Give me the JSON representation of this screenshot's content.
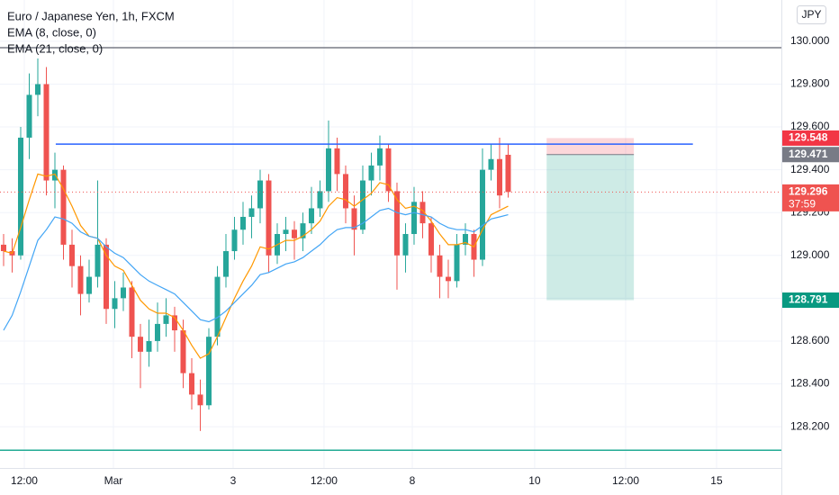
{
  "chart_data": {
    "type": "candlestick",
    "title": "Euro / Japanese Yen, 1h, FXCM",
    "indicators": [
      {
        "name": "EMA (8, close, 0)",
        "color": "#ff9800",
        "values": [
          129.02,
          129.01,
          129.13,
          129.26,
          129.38,
          129.37,
          129.38,
          129.31,
          129.23,
          129.14,
          129.09,
          129.08,
          129.0,
          128.95,
          128.93,
          128.86,
          128.79,
          128.75,
          128.73,
          128.73,
          128.71,
          128.65,
          128.58,
          128.52,
          128.54,
          128.62,
          128.71,
          128.8,
          128.88,
          128.95,
          129.04,
          129.03,
          129.05,
          129.07,
          129.07,
          129.09,
          129.12,
          129.16,
          129.23,
          129.27,
          129.26,
          129.23,
          129.26,
          129.29,
          129.34,
          129.33,
          129.26,
          129.22,
          129.23,
          129.21,
          129.16,
          129.1,
          129.05,
          129.05,
          129.06,
          129.04,
          129.12,
          129.19,
          129.21,
          129.23
        ]
      },
      {
        "name": "EMA (21, close, 0)",
        "color": "#42a5f5",
        "values": [
          128.65,
          128.72,
          128.83,
          128.95,
          129.07,
          129.12,
          129.18,
          129.17,
          129.15,
          129.11,
          129.09,
          129.08,
          129.04,
          129.01,
          128.99,
          128.95,
          128.91,
          128.88,
          128.86,
          128.84,
          128.82,
          128.78,
          128.74,
          128.7,
          128.69,
          128.71,
          128.74,
          128.78,
          128.82,
          128.86,
          128.91,
          128.92,
          128.94,
          128.96,
          128.97,
          128.99,
          129.02,
          129.05,
          129.09,
          129.12,
          129.13,
          129.13,
          129.15,
          129.18,
          129.21,
          129.22,
          129.2,
          129.19,
          129.2,
          129.19,
          129.18,
          129.15,
          129.13,
          129.12,
          129.12,
          129.11,
          129.14,
          129.17,
          129.18,
          129.19
        ]
      }
    ],
    "currency": "JPY",
    "up_color": "#26a69a",
    "down_color": "#ef5350",
    "x": [
      0,
      1,
      2,
      3,
      4,
      5,
      6,
      7,
      8,
      9,
      10,
      11,
      12,
      13,
      14,
      15,
      16,
      17,
      18,
      19,
      20,
      21,
      22,
      23,
      24,
      25,
      26,
      27,
      28,
      29,
      30,
      31,
      32,
      33,
      34,
      35,
      36,
      37,
      38,
      39,
      40,
      41,
      42,
      43,
      44,
      45,
      46,
      47,
      48,
      49,
      50,
      51,
      52,
      53,
      54,
      55,
      56,
      57,
      58,
      59
    ],
    "ohlc": [
      [
        129.05,
        129.1,
        128.95,
        129.02
      ],
      [
        129.02,
        129.08,
        128.92,
        129.0
      ],
      [
        129.0,
        129.6,
        128.98,
        129.55
      ],
      [
        129.55,
        129.85,
        129.45,
        129.75
      ],
      [
        129.75,
        129.92,
        129.65,
        129.8
      ],
      [
        129.8,
        129.88,
        129.28,
        129.35
      ],
      [
        129.35,
        129.48,
        129.22,
        129.4
      ],
      [
        129.4,
        129.42,
        128.98,
        129.05
      ],
      [
        129.05,
        129.12,
        128.85,
        128.95
      ],
      [
        128.95,
        129.0,
        128.72,
        128.82
      ],
      [
        128.82,
        128.98,
        128.78,
        128.9
      ],
      [
        128.9,
        129.35,
        128.85,
        129.05
      ],
      [
        129.05,
        129.08,
        128.68,
        128.75
      ],
      [
        128.75,
        128.88,
        128.66,
        128.8
      ],
      [
        128.8,
        128.92,
        128.74,
        128.85
      ],
      [
        128.85,
        128.88,
        128.52,
        128.62
      ],
      [
        128.62,
        128.68,
        128.38,
        128.55
      ],
      [
        128.55,
        128.7,
        128.48,
        128.6
      ],
      [
        128.6,
        128.78,
        128.55,
        128.68
      ],
      [
        128.68,
        128.8,
        128.62,
        128.72
      ],
      [
        128.72,
        128.76,
        128.55,
        128.65
      ],
      [
        128.65,
        128.7,
        128.38,
        128.45
      ],
      [
        128.45,
        128.52,
        128.28,
        128.35
      ],
      [
        128.35,
        128.42,
        128.18,
        128.3
      ],
      [
        128.3,
        128.66,
        128.28,
        128.62
      ],
      [
        128.62,
        128.95,
        128.58,
        128.9
      ],
      [
        128.9,
        129.1,
        128.85,
        129.02
      ],
      [
        129.02,
        129.18,
        128.98,
        129.12
      ],
      [
        129.12,
        129.25,
        129.05,
        129.18
      ],
      [
        129.18,
        129.28,
        129.08,
        129.22
      ],
      [
        129.22,
        129.4,
        129.15,
        129.35
      ],
      [
        129.35,
        129.38,
        128.92,
        129.0
      ],
      [
        129.0,
        129.15,
        128.96,
        129.1
      ],
      [
        129.1,
        129.18,
        129.02,
        129.12
      ],
      [
        129.12,
        129.16,
        128.98,
        129.08
      ],
      [
        129.08,
        129.2,
        129.02,
        129.15
      ],
      [
        129.15,
        129.32,
        129.1,
        129.22
      ],
      [
        129.22,
        129.35,
        129.18,
        129.3
      ],
      [
        129.3,
        129.63,
        129.25,
        129.5
      ],
      [
        129.5,
        129.55,
        129.3,
        129.38
      ],
      [
        129.38,
        129.42,
        129.15,
        129.22
      ],
      [
        129.22,
        129.28,
        129.0,
        129.12
      ],
      [
        129.12,
        129.42,
        129.1,
        129.35
      ],
      [
        129.35,
        129.48,
        129.28,
        129.42
      ],
      [
        129.42,
        129.56,
        129.35,
        129.5
      ],
      [
        129.5,
        129.52,
        129.25,
        129.3
      ],
      [
        129.3,
        129.34,
        128.84,
        129.0
      ],
      [
        129.0,
        129.15,
        128.92,
        129.1
      ],
      [
        129.1,
        129.32,
        129.05,
        129.25
      ],
      [
        129.25,
        129.3,
        129.08,
        129.15
      ],
      [
        129.15,
        129.18,
        128.92,
        129.0
      ],
      [
        129.0,
        129.05,
        128.8,
        128.9
      ],
      [
        128.9,
        128.98,
        128.8,
        128.88
      ],
      [
        128.88,
        129.1,
        128.85,
        129.05
      ],
      [
        129.05,
        129.15,
        129.0,
        129.1
      ],
      [
        129.1,
        129.12,
        128.9,
        128.98
      ],
      [
        128.98,
        129.5,
        128.95,
        129.4
      ],
      [
        129.4,
        129.52,
        129.35,
        129.45
      ],
      [
        129.45,
        129.55,
        129.22,
        129.28
      ],
      [
        129.47,
        129.52,
        129.27,
        129.296
      ]
    ],
    "xlim": [
      -0.42,
      90.95
    ],
    "xticks": [
      {
        "value": 2.42,
        "label": "12:00"
      },
      {
        "value": 12.84,
        "label": "Mar"
      },
      {
        "value": 26.84,
        "label": "3"
      },
      {
        "value": 37.47,
        "label": "12:00"
      },
      {
        "value": 47.79,
        "label": "8"
      },
      {
        "value": 62.1,
        "label": "10"
      },
      {
        "value": 72.74,
        "label": "12:00"
      },
      {
        "value": 83.37,
        "label": "15"
      }
    ],
    "ylim": [
      128.007,
      130.193
    ],
    "yticks": [
      {
        "value": 128.2,
        "label": "128.200"
      },
      {
        "value": 128.4,
        "label": "128.400"
      },
      {
        "value": 128.6,
        "label": "128.600"
      },
      {
        "value": 128.8,
        "label": "128.800"
      },
      {
        "value": 129.0,
        "label": "129.000"
      },
      {
        "value": 129.2,
        "label": "129.200"
      },
      {
        "value": 129.4,
        "label": "129.400"
      },
      {
        "value": 129.6,
        "label": "129.600"
      },
      {
        "value": 129.8,
        "label": "129.800"
      },
      {
        "value": 130.0,
        "label": "130.000"
      }
    ],
    "grid": true,
    "hlines": [
      {
        "value": 129.97,
        "color": "#787b86"
      },
      {
        "value": 128.09,
        "color": "#22ab94"
      }
    ],
    "level": {
      "value": 129.52,
      "x": [
        6.1,
        80.6
      ],
      "color": "#2962ff"
    },
    "position": {
      "x": [
        63.5,
        73.7
      ],
      "stop": 129.548,
      "entry": 129.471,
      "target": 128.791
    },
    "last_price": 129.296,
    "countdown": "37:59"
  }
}
